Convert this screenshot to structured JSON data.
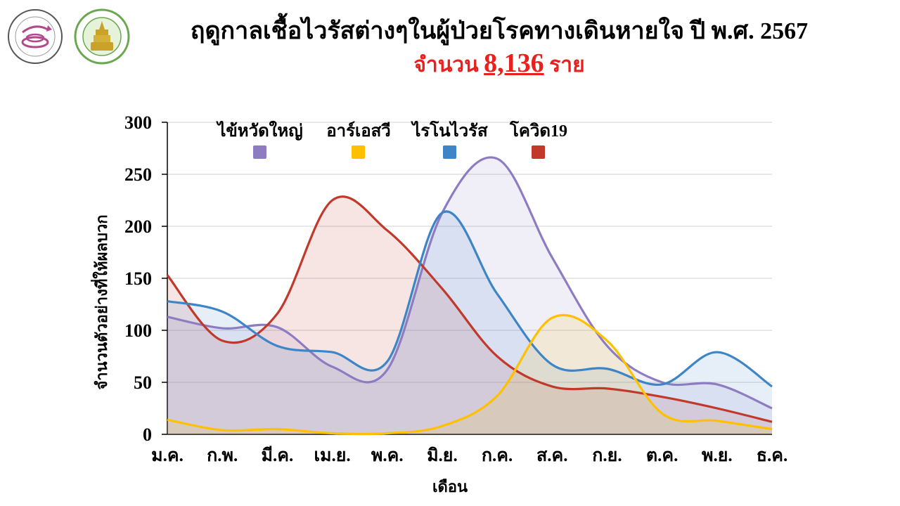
{
  "header": {
    "title": "ฤดูกาลเชื้อไวรัสต่างๆในผู้ป่วยโรคทางเดินหายใจ ปี พ.ศ. 2567",
    "subtitle_prefix": "จำนวน",
    "subtitle_count": "8,136",
    "subtitle_suffix": "ราย"
  },
  "logos": [
    {
      "name": "Center of Excellence in Clinical Virology",
      "icon": "virology-center-logo"
    },
    {
      "name": "Faculty of Medicine Chulalongkorn University",
      "icon": "chulalongkorn-medicine-logo"
    }
  ],
  "chart_data": {
    "type": "area",
    "title": "",
    "xlabel": "เดือน",
    "ylabel": "จำนวนตัวอย่างที่ให้ผลบวก",
    "categories": [
      "ม.ค.",
      "ก.พ.",
      "มี.ค.",
      "เม.ย.",
      "พ.ค.",
      "มิ.ย.",
      "ก.ค.",
      "ส.ค.",
      "ก.ย.",
      "ต.ค.",
      "พ.ย.",
      "ธ.ค."
    ],
    "ylim": [
      0,
      300
    ],
    "yticks": [
      0,
      50,
      100,
      150,
      200,
      250,
      300
    ],
    "grid": true,
    "legend_position": "top",
    "series": [
      {
        "name": "ไข้หวัดใหญ่",
        "color": "#8e7cc3",
        "values": [
          113,
          102,
          103,
          65,
          62,
          213,
          265,
          170,
          85,
          50,
          48,
          25
        ]
      },
      {
        "name": "อาร์เอสวี",
        "color": "#ffc000",
        "values": [
          14,
          4,
          5,
          1,
          1,
          8,
          37,
          112,
          90,
          20,
          13,
          5
        ]
      },
      {
        "name": "ไรโนไวรัส",
        "color": "#3d85c6",
        "values": [
          128,
          118,
          85,
          79,
          70,
          213,
          135,
          67,
          63,
          48,
          79,
          46
        ]
      },
      {
        "name": "โควิด19",
        "color": "#c0392b",
        "values": [
          153,
          90,
          116,
          225,
          196,
          140,
          75,
          46,
          44,
          36,
          25,
          12
        ]
      }
    ]
  }
}
